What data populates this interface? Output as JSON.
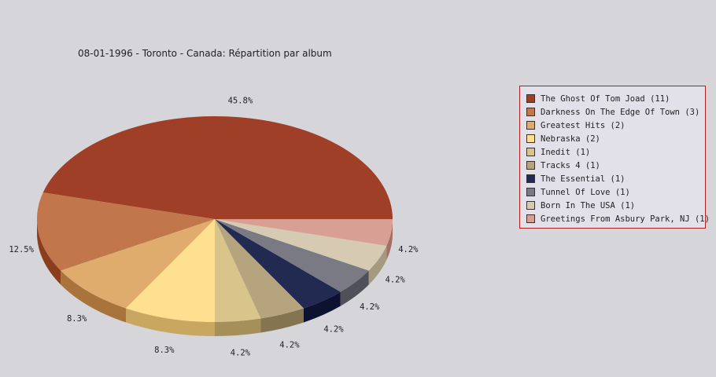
{
  "chart_data": {
    "type": "pie",
    "title": "08-01-1996 - Toronto - Canada:  Répartition par album",
    "slices": [
      {
        "label": "The Ghost Of Tom Joad (11)",
        "value": 11,
        "pct": "45.8%",
        "color": "#a03f27",
        "side": "#6e0b00"
      },
      {
        "label": "Darkness On The Edge Of Town (3)",
        "value": 3,
        "pct": "12.5%",
        "color": "#c2764c",
        "side": "#8a3e1e"
      },
      {
        "label": "Greatest Hits (2)",
        "value": 2,
        "pct": "8.3%",
        "color": "#dfac6e",
        "side": "#a8743c"
      },
      {
        "label": "Nebraska (2)",
        "value": 2,
        "pct": "8.3%",
        "color": "#ffdf90",
        "side": "#c8a860"
      },
      {
        "label": "Inedit (1)",
        "value": 1,
        "pct": "4.2%",
        "color": "#d9c48b",
        "side": "#a49058"
      },
      {
        "label": "Tracks 4 (1)",
        "value": 1,
        "pct": "4.2%",
        "color": "#b6a47f",
        "side": "#84744f"
      },
      {
        "label": "The Essential (1)",
        "value": 1,
        "pct": "4.2%",
        "color": "#222a52",
        "side": "#0c1230"
      },
      {
        "label": "Tunnel Of Love (1)",
        "value": 1,
        "pct": "4.2%",
        "color": "#7a7a84",
        "side": "#50505a"
      },
      {
        "label": "Born In The USA (1)",
        "value": 1,
        "pct": "4.2%",
        "color": "#d6cbb2",
        "side": "#a49a80"
      },
      {
        "label": "Greetings From Asbury Park, NJ (1)",
        "value": 1,
        "pct": "4.2%",
        "color": "#d8a094",
        "side": "#a46e62"
      }
    ],
    "legend": "right"
  }
}
